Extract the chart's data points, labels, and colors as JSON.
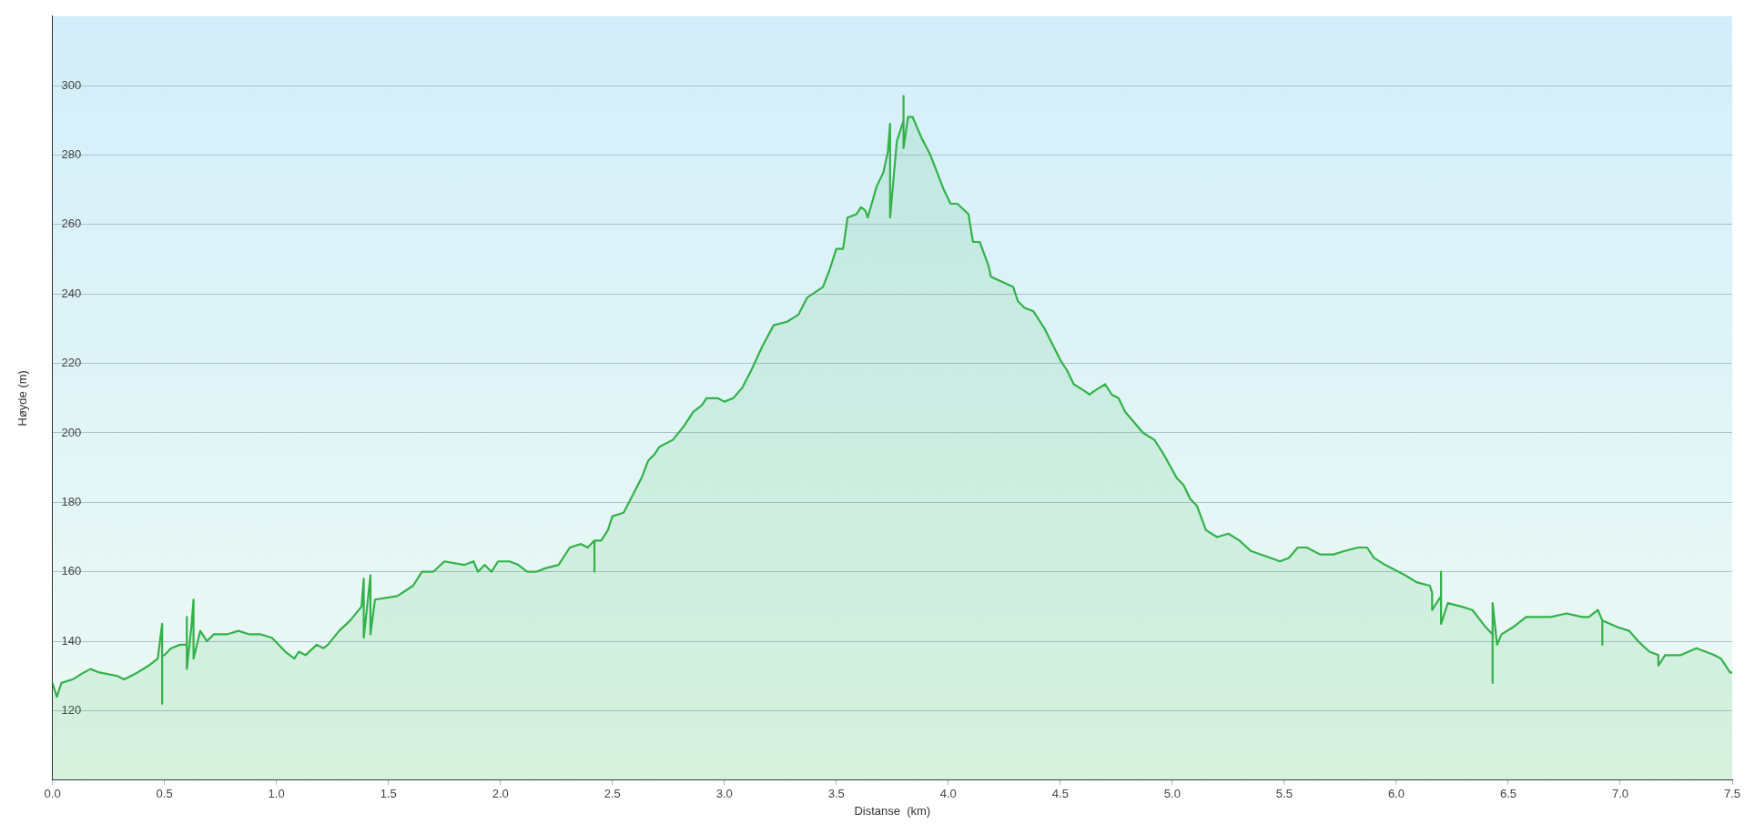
{
  "chart_data": {
    "type": "area",
    "xlabel": "Distanse  (km)",
    "ylabel": "Høyde (m)",
    "xlim": [
      0,
      7.5
    ],
    "ylim": [
      100,
      320
    ],
    "xticks": [
      {
        "value": 0,
        "label": "0.0"
      },
      0.5,
      {
        "value": 1,
        "label": "1.0"
      },
      1.5,
      {
        "value": 2,
        "label": "2.0"
      },
      2.5,
      {
        "value": 3,
        "label": "3.0"
      },
      3.5,
      {
        "value": 4,
        "label": "4.0"
      },
      4.5,
      {
        "value": 5,
        "label": "5.0"
      },
      5.5,
      {
        "value": 6,
        "label": "6.0"
      },
      6.5,
      {
        "value": 7,
        "label": "7.0"
      },
      7.5
    ],
    "yticks": [
      120,
      140,
      160,
      180,
      200,
      220,
      240,
      260,
      280,
      300
    ],
    "grid": "y",
    "legend": false,
    "marker": "none",
    "line_style": "solid",
    "series": [
      {
        "color": "#33b249",
        "x": [
          0,
          0.02,
          0.04,
          0.09,
          0.14,
          0.17,
          0.21,
          0.29,
          0.32,
          0.38,
          0.43,
          0.47,
          0.49,
          0.49,
          0.49,
          0.5,
          0.53,
          0.57,
          0.6,
          0.6,
          0.6,
          0.62,
          0.63,
          0.63,
          0.66,
          0.69,
          0.72,
          0.78,
          0.83,
          0.88,
          0.93,
          0.98,
          1.04,
          1.08,
          1.1,
          1.13,
          1.18,
          1.21,
          1.23,
          1.28,
          1.33,
          1.38,
          1.39,
          1.39,
          1.41,
          1.42,
          1.42,
          1.44,
          1.54,
          1.61,
          1.65,
          1.7,
          1.75,
          1.84,
          1.88,
          1.9,
          1.93,
          1.96,
          1.99,
          2.04,
          2.08,
          2.12,
          2.16,
          2.2,
          2.26,
          2.31,
          2.36,
          2.39,
          2.42,
          2.42,
          2.42,
          2.45,
          2.48,
          2.5,
          2.55,
          2.59,
          2.63,
          2.66,
          2.69,
          2.71,
          2.77,
          2.82,
          2.86,
          2.9,
          2.92,
          2.97,
          3,
          3.04,
          3.08,
          3.12,
          3.17,
          3.22,
          3.28,
          3.33,
          3.37,
          3.44,
          3.47,
          3.5,
          3.53,
          3.55,
          3.59,
          3.61,
          3.63,
          3.64,
          3.68,
          3.71,
          3.73,
          3.74,
          3.74,
          3.77,
          3.8,
          3.8,
          3.8,
          3.82,
          3.84,
          3.88,
          3.92,
          3.95,
          3.98,
          4.01,
          4.04,
          4.09,
          4.11,
          4.14,
          4.18,
          4.19,
          4.29,
          4.31,
          4.34,
          4.38,
          4.43,
          4.5,
          4.53,
          4.56,
          4.61,
          4.63,
          4.65,
          4.7,
          4.73,
          4.76,
          4.79,
          4.87,
          4.92,
          4.96,
          5.02,
          5.05,
          5.08,
          5.11,
          5.15,
          5.2,
          5.25,
          5.3,
          5.35,
          5.44,
          5.48,
          5.52,
          5.56,
          5.6,
          5.66,
          5.72,
          5.77,
          5.83,
          5.87,
          5.9,
          5.95,
          6.04,
          6.09,
          6.15,
          6.16,
          6.16,
          6.2,
          6.2,
          6.2,
          6.23,
          6.29,
          6.34,
          6.4,
          6.43,
          6.43,
          6.43,
          6.45,
          6.47,
          6.52,
          6.58,
          6.63,
          6.69,
          6.76,
          6.83,
          6.86,
          6.9,
          6.92,
          6.92,
          6.92,
          6.99,
          7.04,
          7.08,
          7.13,
          7.17,
          7.17,
          7.2,
          7.27,
          7.34,
          7.42,
          7.45,
          7.49,
          7.5
        ],
        "values": [
          128,
          124,
          128,
          129,
          131,
          132,
          131,
          130,
          129,
          131,
          133,
          135,
          145,
          122,
          136,
          136,
          138,
          139,
          139,
          147,
          132,
          144,
          152,
          135,
          143,
          140,
          142,
          142,
          143,
          142,
          142,
          141,
          137,
          135,
          137,
          136,
          139,
          138,
          139,
          143,
          146,
          150,
          158,
          141,
          153,
          159,
          142,
          152,
          153,
          156,
          160,
          160,
          163,
          162,
          163,
          160,
          162,
          160,
          163,
          163,
          162,
          160,
          160,
          161,
          162,
          167,
          168,
          167,
          169,
          160,
          169,
          169,
          172,
          176,
          177,
          182,
          187,
          192,
          194,
          196,
          198,
          202,
          206,
          208,
          210,
          210,
          209,
          210,
          213,
          218,
          225,
          231,
          232,
          234,
          239,
          242,
          247,
          253,
          253,
          262,
          263,
          265,
          264,
          262,
          271,
          275,
          281,
          289,
          262,
          284,
          290,
          297,
          282,
          291,
          291,
          285,
          280,
          275,
          270,
          266,
          266,
          263,
          255,
          255,
          248,
          245,
          242,
          238,
          236,
          235,
          230,
          221,
          218,
          214,
          212,
          211,
          212,
          214,
          211,
          210,
          206,
          200,
          198,
          194,
          187,
          185,
          181,
          179,
          172,
          170,
          171,
          169,
          166,
          164,
          163,
          164,
          167,
          167,
          165,
          165,
          166,
          167,
          167,
          164,
          162,
          159,
          157,
          156,
          154,
          149,
          153,
          160,
          145,
          151,
          150,
          149,
          144,
          142,
          128,
          151,
          139,
          142,
          144,
          147,
          147,
          147,
          148,
          147,
          147,
          149,
          146,
          139,
          146,
          144,
          143,
          140,
          137,
          136,
          133,
          136,
          136,
          138,
          136,
          135,
          131,
          131
        ]
      }
    ]
  }
}
